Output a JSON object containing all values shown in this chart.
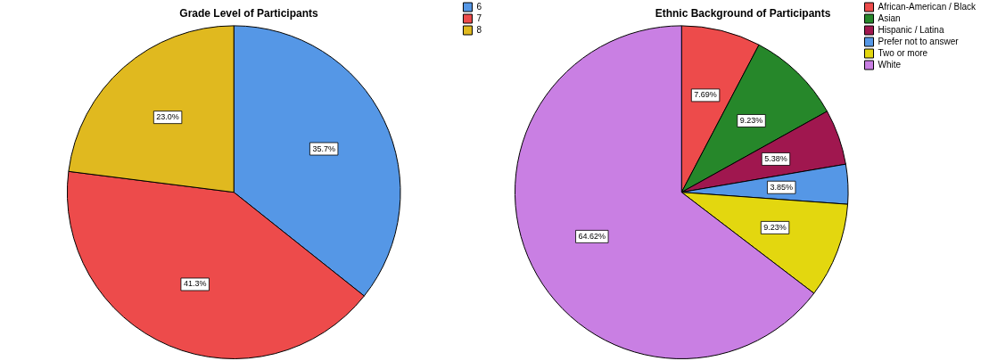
{
  "chart_data": [
    {
      "type": "pie",
      "title": "Grade Level of Participants",
      "categories": [
        "6",
        "7",
        "8"
      ],
      "values": [
        35.7,
        41.3,
        23.0
      ],
      "colors": [
        "#5597e6",
        "#ed4b4b",
        "#e0b91f"
      ],
      "value_labels": [
        "35.7%",
        "41.3%",
        "23.0%"
      ],
      "legend": "top right"
    },
    {
      "type": "pie",
      "title": "Ethnic Background of Participants",
      "categories": [
        "African-American / Black",
        "Asian",
        "Hispanic / Latina",
        "Prefer not to answer",
        "Two or more",
        "White"
      ],
      "values": [
        7.69,
        9.23,
        5.38,
        3.85,
        9.23,
        64.62
      ],
      "colors": [
        "#ed4b4b",
        "#26872a",
        "#a0174f",
        "#5597e6",
        "#e3d70f",
        "#c97fe3"
      ],
      "value_labels": [
        "7.69%",
        "9.23%",
        "5.38%",
        "3.85%",
        "9.23%",
        "64.62%"
      ],
      "legend": "top right"
    }
  ]
}
